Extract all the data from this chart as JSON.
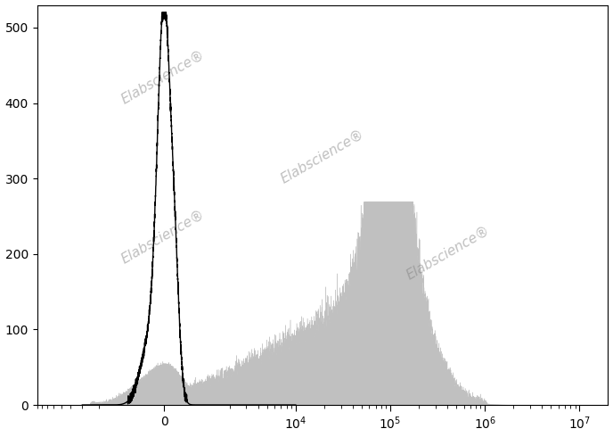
{
  "title": "",
  "ylabel": "",
  "xlabel": "",
  "ylim": [
    0,
    530
  ],
  "yticks": [
    0,
    100,
    200,
    300,
    400,
    500
  ],
  "background_color": "#ffffff",
  "fill_color": "#c0c0c0",
  "line_color": "#000000",
  "watermark_color": "#b0b0b0",
  "watermark_alpha": 0.5,
  "watermark_fontsize": 11,
  "xlim_left": -3500,
  "xlim_right": 20000000,
  "linthresh": 1000,
  "linscale": 0.35
}
